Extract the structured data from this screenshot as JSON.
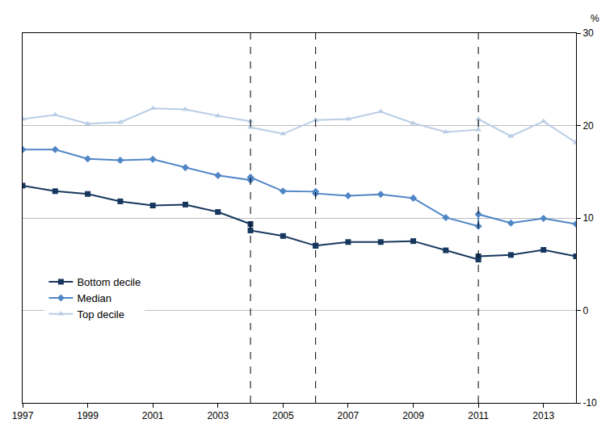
{
  "chart_data": {
    "type": "line",
    "ylabel": "%",
    "x": [
      1997,
      1998,
      1999,
      2000,
      2001,
      2002,
      2003,
      2004,
      2004,
      2005,
      2006,
      2006,
      2007,
      2008,
      2009,
      2010,
      2011,
      2011,
      2012,
      2013,
      2014
    ],
    "series": [
      {
        "name": "Bottom decile",
        "color": "#17375e",
        "marker": "square",
        "values": [
          13.5,
          12.9,
          12.6,
          11.8,
          11.35,
          11.45,
          10.65,
          9.35,
          8.65,
          8.05,
          7.0,
          7.0,
          7.4,
          7.4,
          7.5,
          6.5,
          5.5,
          5.85,
          6.0,
          6.55,
          5.85
        ]
      },
      {
        "name": "Median",
        "color": "#4f86c6",
        "marker": "diamond",
        "values": [
          17.4,
          17.4,
          16.4,
          16.25,
          16.35,
          15.45,
          14.6,
          14.1,
          14.4,
          12.9,
          12.85,
          12.65,
          12.4,
          12.55,
          12.15,
          10.05,
          9.1,
          10.4,
          9.45,
          9.95,
          9.35
        ]
      },
      {
        "name": "Top decile",
        "color": "#b9cde5",
        "marker": "triangle-up",
        "values": [
          20.7,
          21.15,
          20.2,
          20.35,
          21.85,
          21.75,
          21.05,
          20.45,
          19.8,
          19.1,
          20.6,
          20.6,
          20.7,
          21.5,
          20.25,
          19.3,
          19.55,
          20.7,
          18.85,
          20.45,
          18.15
        ]
      }
    ],
    "breaks": [
      2004,
      2006,
      2011
    ],
    "xlim": [
      1997,
      2014
    ],
    "xticks": [
      1997,
      1999,
      2001,
      2003,
      2005,
      2007,
      2009,
      2011,
      2013
    ],
    "ylim": [
      -10,
      30
    ],
    "yticks": [
      -10,
      0,
      10,
      20,
      30
    ],
    "grid": true,
    "legend": "lower left"
  }
}
